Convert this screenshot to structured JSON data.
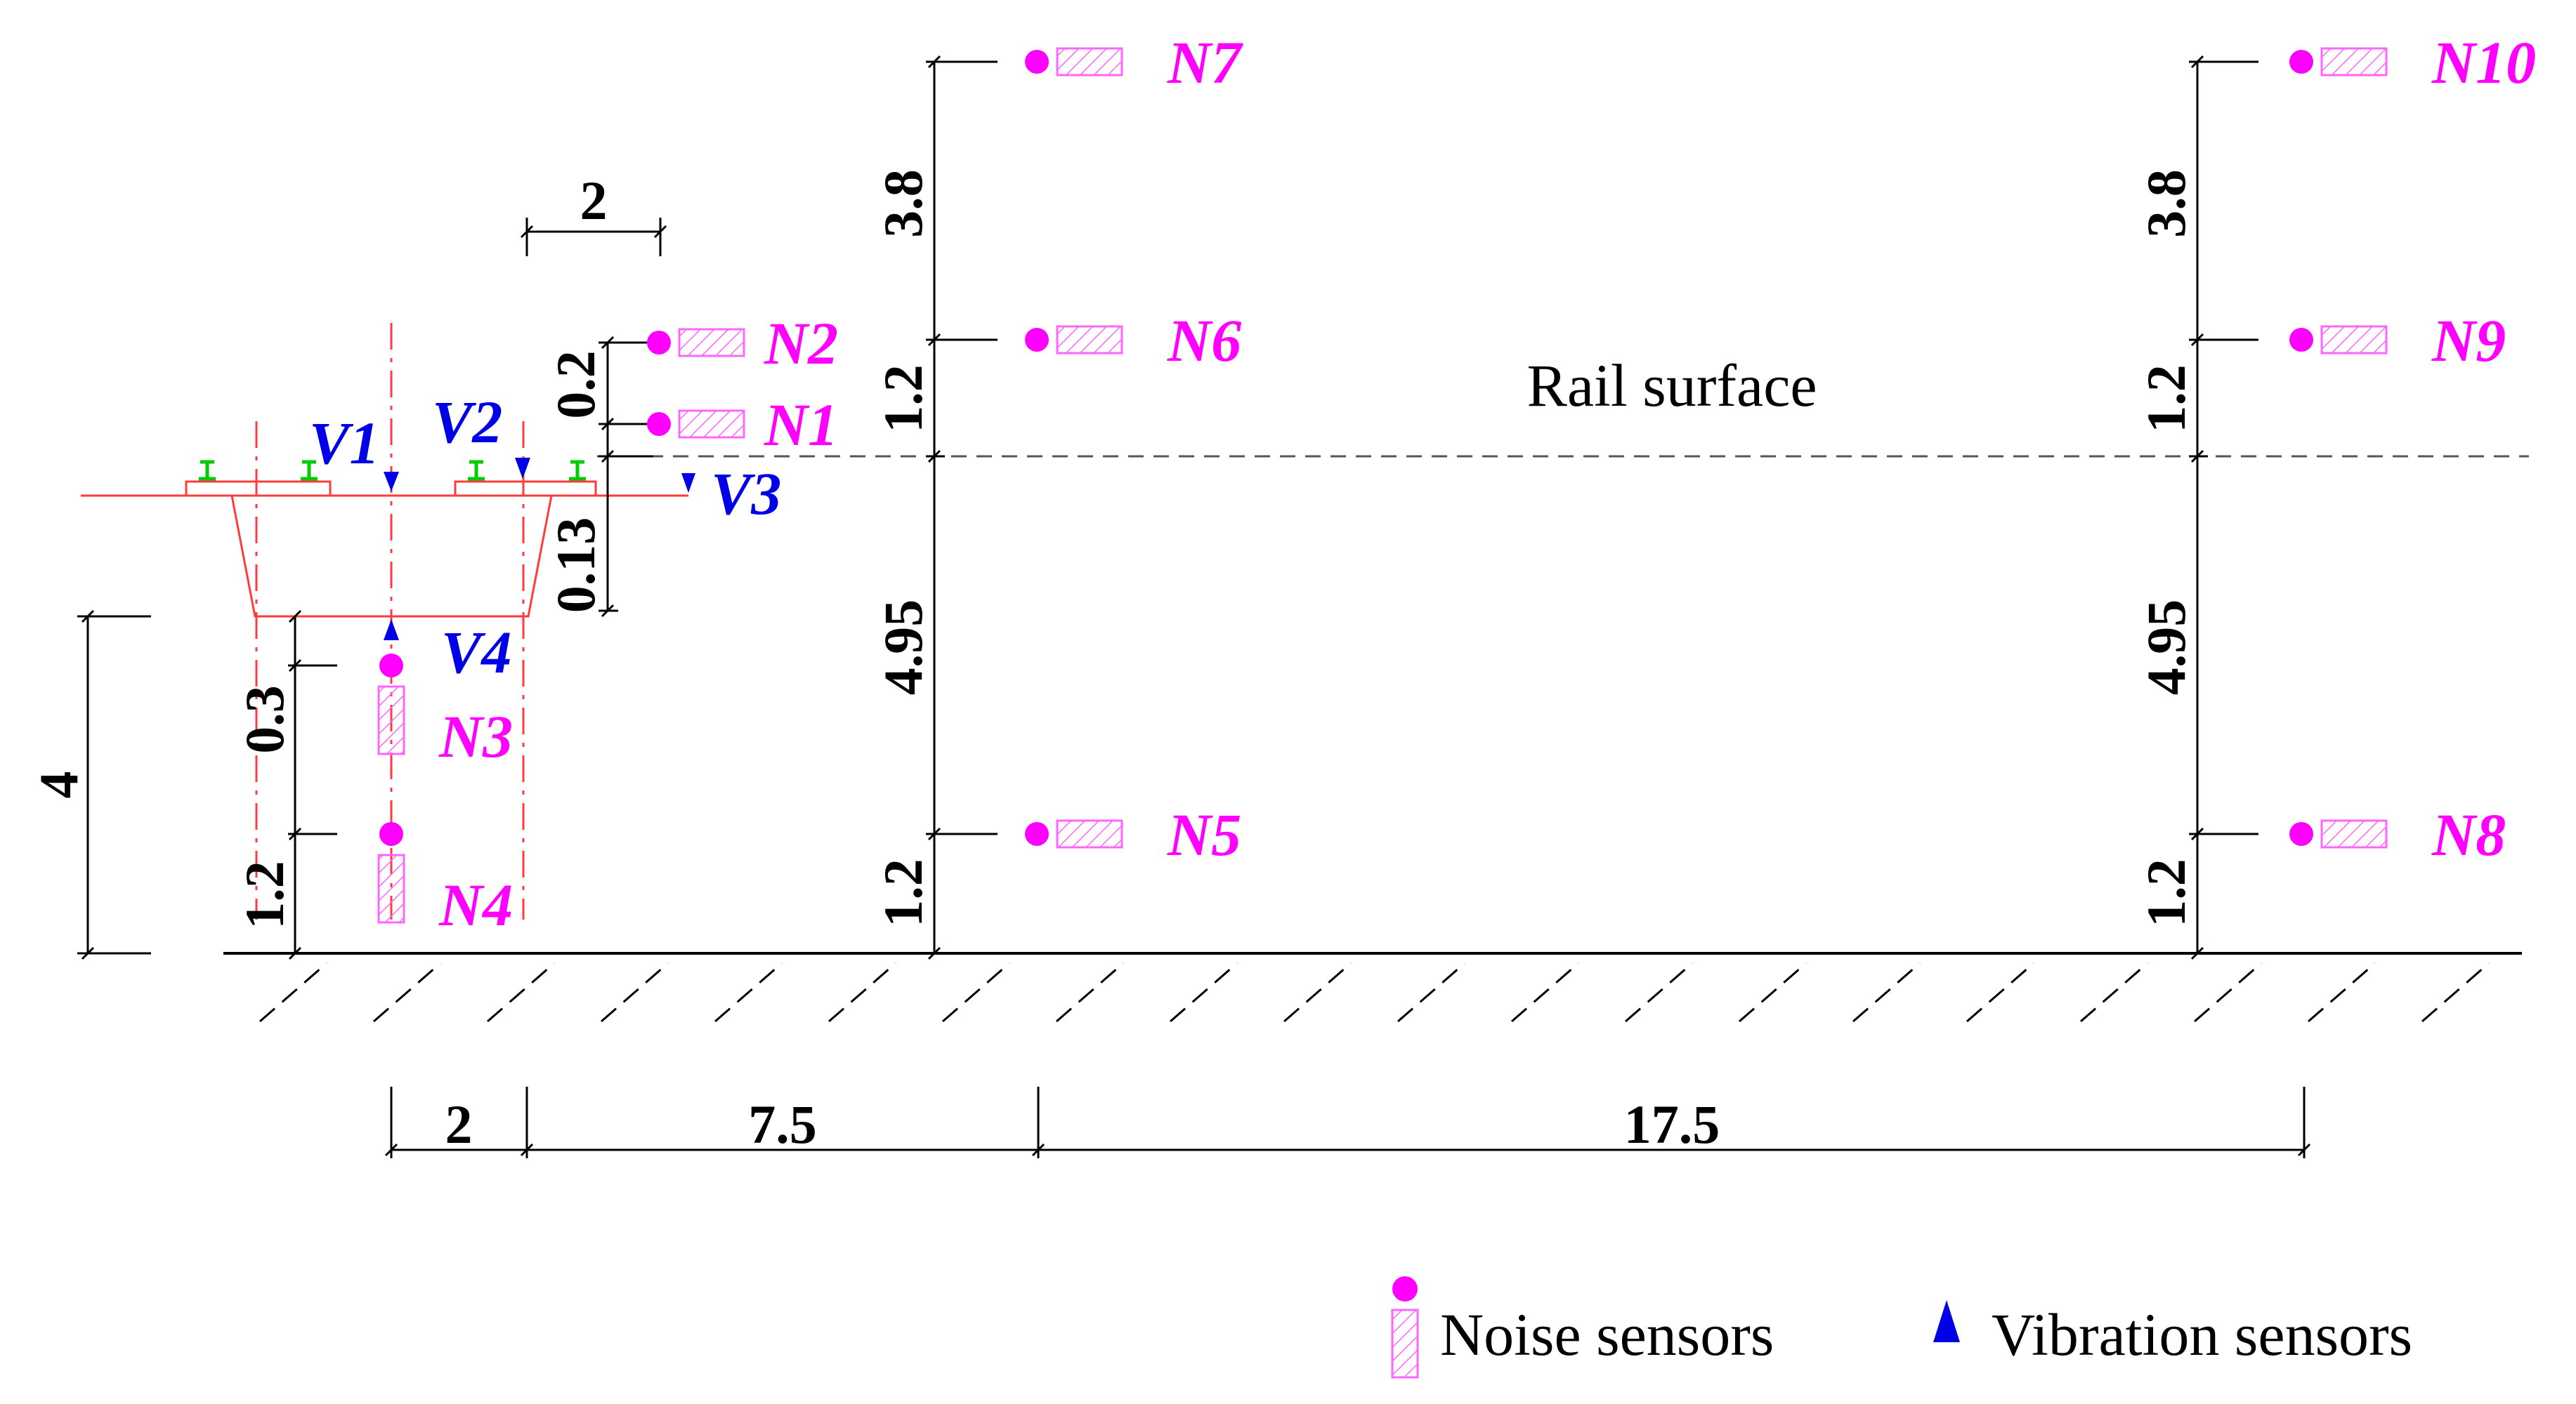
{
  "colors": {
    "noise": "#ff00ff",
    "vibration": "#0000e6",
    "structure": "#ff3b3b",
    "rail": "#00cc00",
    "line": "#000000",
    "ground_hatch": "#000000"
  },
  "labels": {
    "rail_surface": "Rail surface"
  },
  "legend": {
    "noise": "Noise sensors",
    "vibration": "Vibration sensors"
  },
  "noise_sensors": [
    "N1",
    "N2",
    "N3",
    "N4",
    "N5",
    "N6",
    "N7",
    "N8",
    "N9",
    "N10"
  ],
  "vibration_sensors": [
    "V1",
    "V2",
    "V3",
    "V4"
  ],
  "dimensions": {
    "top_width": "2",
    "n1_n2_gap": "0.2",
    "deck_depth": "0.13",
    "height_4": "4",
    "n3_depth": "0.3",
    "n4_height": "1.2",
    "left_near_4_95": "4.95",
    "left_near_1_2_lower": "1.2",
    "left_near_1_2_upper": "1.2",
    "left_near_3_8": "3.8",
    "right_far_4_95": "4.95",
    "right_far_1_2_lower": "1.2",
    "right_far_1_2_upper": "1.2",
    "right_far_3_8": "3.8",
    "bottom_2": "2",
    "bottom_7_5": "7.5",
    "bottom_17_5": "17.5"
  }
}
